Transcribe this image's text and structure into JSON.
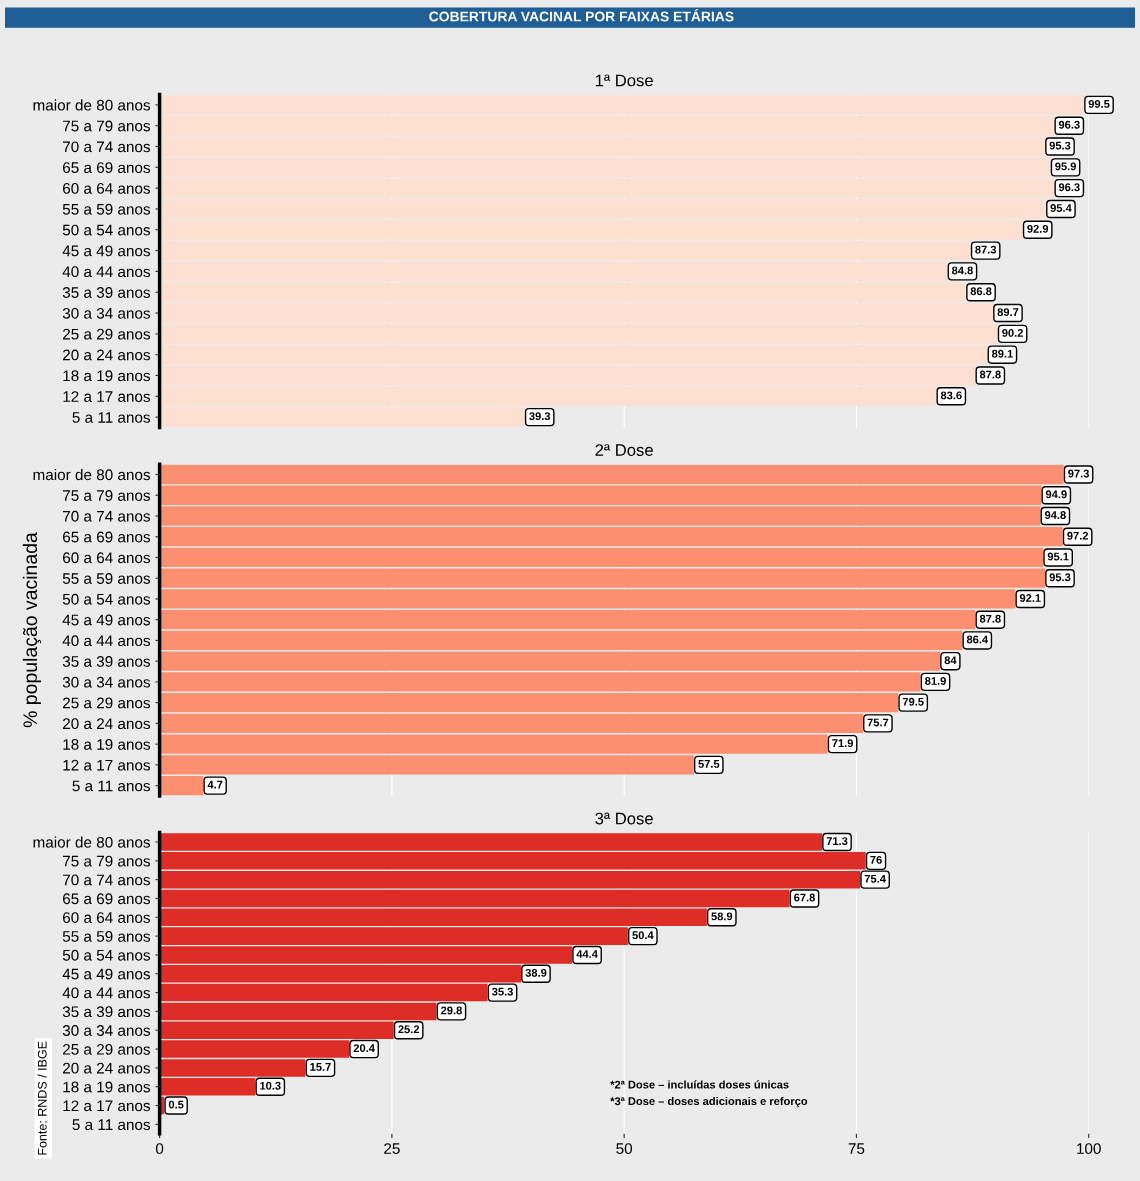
{
  "chart_data": [
    {
      "type": "bar",
      "orientation": "horizontal",
      "title": "COBERTURA VACINAL POR FAIXAS ETÁRIAS",
      "subtitle": "1ª Dose",
      "categories": [
        "maior de 80 anos",
        "75 a 79 anos",
        "70 a 74 anos",
        "65 a 69 anos",
        "60 a 64 anos",
        "55 a 59 anos",
        "50 a 54 anos",
        "45 a 49 anos",
        "40 a 44 anos",
        "35 a 39 anos",
        "30 a 34 anos",
        "25 a 29 anos",
        "20 a 24 anos",
        "18 a 19 anos",
        "12 a 17 anos",
        "5 a 11 anos"
      ],
      "values": [
        99.5,
        96.3,
        95.3,
        95.9,
        96.3,
        95.4,
        92.9,
        87.3,
        84.8,
        86.8,
        89.7,
        90.2,
        89.1,
        87.8,
        83.6,
        39.3
      ],
      "value_labels": [
        "99.5",
        "96.3",
        "95.3",
        "95.9",
        "96.3",
        "95.4",
        "92.9",
        "87.3",
        "84.8",
        "86.8",
        "89.7",
        "90.2",
        "89.1",
        "87.8",
        "83.6",
        "39.3"
      ],
      "color": "#fde0d2",
      "xlim": [
        0,
        100
      ],
      "xticks": [
        0,
        25,
        50,
        75,
        100
      ],
      "grid": "x",
      "tick_labels": "y"
    },
    {
      "type": "bar",
      "orientation": "horizontal",
      "subtitle": "2ª Dose",
      "ylabel": "% população vacinada",
      "categories": [
        "maior de 80 anos",
        "75 a 79 anos",
        "70 a 74 anos",
        "65 a 69 anos",
        "60 a 64 anos",
        "55 a 59 anos",
        "50 a 54 anos",
        "45 a 49 anos",
        "40 a 44 anos",
        "35 a 39 anos",
        "30 a 34 anos",
        "25 a 29 anos",
        "20 a 24 anos",
        "18 a 19 anos",
        "12 a 17 anos",
        "5 a 11 anos"
      ],
      "values": [
        97.3,
        94.9,
        94.8,
        97.2,
        95.1,
        95.3,
        92.1,
        87.8,
        86.4,
        84,
        81.9,
        79.5,
        75.7,
        71.9,
        57.5,
        4.7
      ],
      "value_labels": [
        "97.3",
        "94.9",
        "94.8",
        "97.2",
        "95.1",
        "95.3",
        "92.1",
        "87.8",
        "86.4",
        "84",
        "81.9",
        "79.5",
        "75.7",
        "71.9",
        "57.5",
        "4.7"
      ],
      "color": "#fc8f6f",
      "xlim": [
        0,
        100
      ],
      "xticks": [
        0,
        25,
        50,
        75,
        100
      ],
      "grid": "x",
      "tick_labels": "y"
    },
    {
      "type": "bar",
      "orientation": "horizontal",
      "subtitle": "3ª Dose",
      "categories": [
        "maior de 80 anos",
        "75 a 79 anos",
        "70 a 74 anos",
        "65 a 69 anos",
        "60 a 64 anos",
        "55 a 59 anos",
        "50 a 54 anos",
        "45 a 49 anos",
        "40 a 44 anos",
        "35 a 39 anos",
        "30 a 34 anos",
        "25 a 29 anos",
        "20 a 24 anos",
        "18 a 19 anos",
        "12 a 17 anos",
        "5 a 11 anos"
      ],
      "values": [
        71.3,
        76,
        75.4,
        67.8,
        58.9,
        50.4,
        44.4,
        38.9,
        35.3,
        29.8,
        25.2,
        20.4,
        15.7,
        10.3,
        0.5,
        0
      ],
      "value_labels": [
        "71.3",
        "76",
        "75.4",
        "67.8",
        "58.9",
        "50.4",
        "44.4",
        "38.9",
        "35.3",
        "29.8",
        "25.2",
        "20.4",
        "15.7",
        "10.3",
        "0.5",
        null
      ],
      "color": "#de2d26",
      "xlim": [
        0,
        100
      ],
      "xticks": [
        0,
        25,
        50,
        75,
        100
      ],
      "grid": "x",
      "annotations": [
        "Fonte: RNDS / IBGE",
        "*2ª Dose – incluídas doses únicas",
        "*3ª Dose – doses adicionais e reforço"
      ]
    }
  ]
}
